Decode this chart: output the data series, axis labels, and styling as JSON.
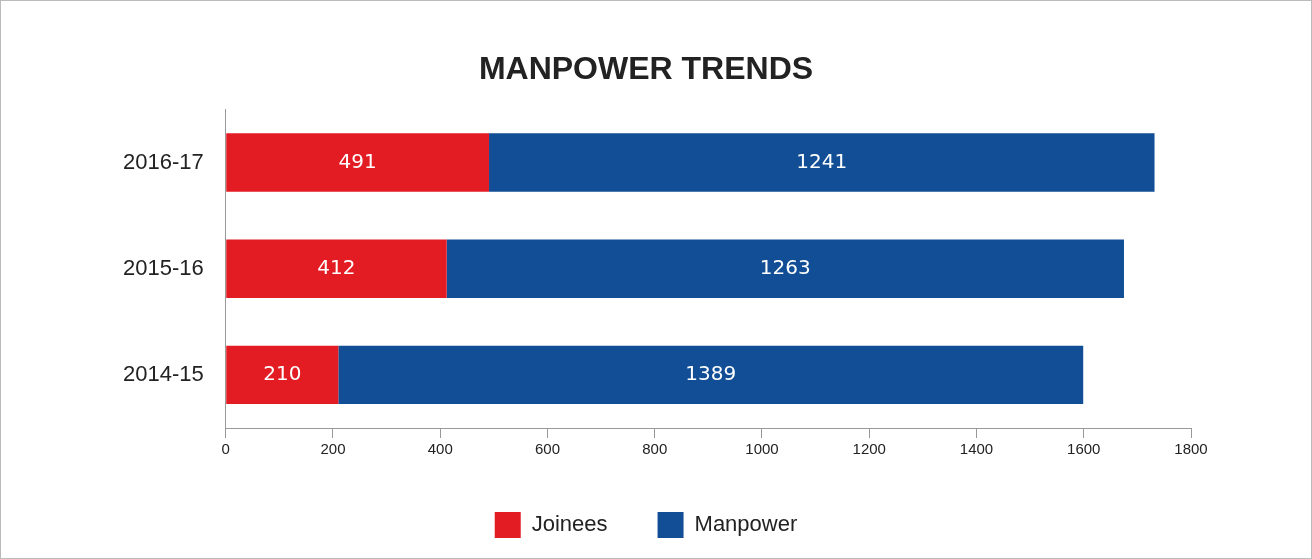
{
  "chart_data": {
    "type": "bar",
    "title": "MANPOWER TRENDS",
    "orientation": "horizontal",
    "stacked": true,
    "categories": [
      "2016-17",
      "2015-16",
      "2014-15"
    ],
    "series": [
      {
        "name": "Joinees",
        "color": "#e31b23",
        "values": [
          491,
          412,
          210
        ]
      },
      {
        "name": "Manpower",
        "color": "#114e96",
        "values": [
          1241,
          1263,
          1389
        ]
      }
    ],
    "xlim": [
      0,
      1800
    ],
    "xticks": [
      0,
      200,
      400,
      600,
      800,
      1000,
      1200,
      1400,
      1600,
      1800
    ],
    "data_labels": true,
    "grid": false,
    "legend": "bottom"
  }
}
